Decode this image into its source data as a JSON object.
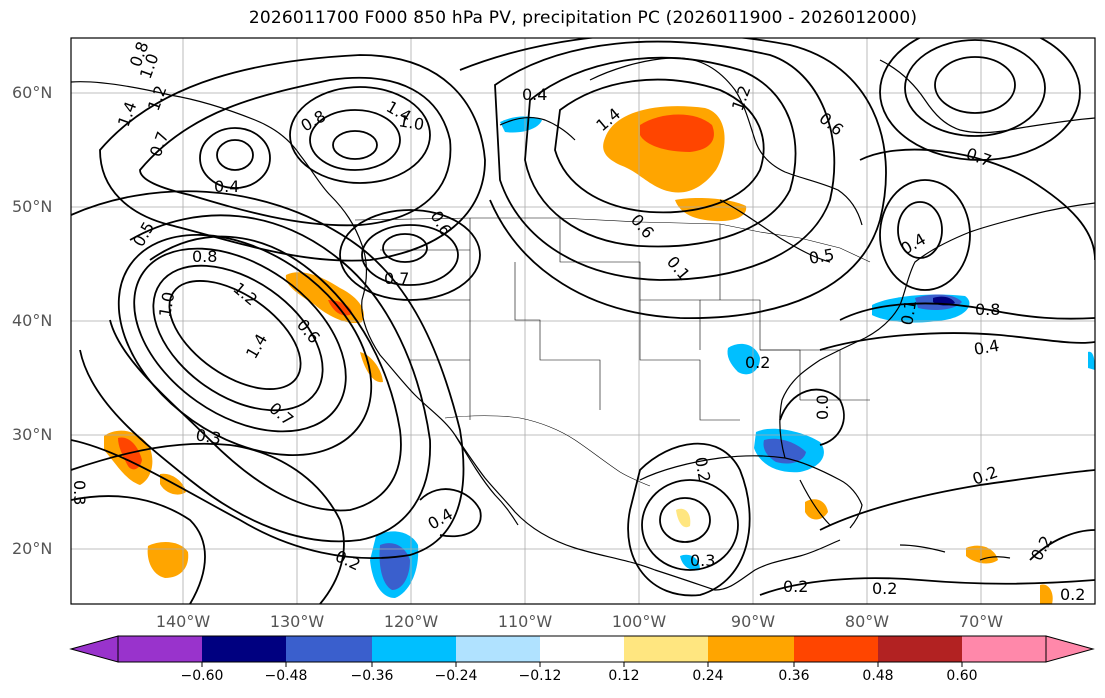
{
  "title": "2026011700 F000 850 hPa PV, precipitation PC (2026011900 - 2026012000)",
  "lat_labels": [
    "60°N",
    "50°N",
    "40°N",
    "30°N",
    "20°N"
  ],
  "lon_labels": [
    "140°W",
    "130°W",
    "120°W",
    "110°W",
    "100°W",
    "90°W",
    "80°W",
    "70°W"
  ],
  "colorbar": {
    "ticks": [
      "−0.60",
      "−0.48",
      "−0.36",
      "−0.24",
      "−0.12",
      "0.12",
      "0.24",
      "0.36",
      "0.48",
      "0.60"
    ],
    "colors": [
      "#9933cc",
      "#000080",
      "#3a5fcd",
      "#00bfff",
      "#b0e2ff",
      "#ffffff",
      "#ffe680",
      "#ffa500",
      "#ff4500",
      "#b22222",
      "#ff88aa"
    ]
  },
  "contour_labels": [
    "0.8",
    "1.0",
    "1.2",
    "1.4",
    "0.7",
    "0.8",
    "1.4",
    "1.0",
    "0.4",
    "1.4",
    "1.2",
    "0.6",
    "0.4",
    "0.5",
    "0.8",
    "1.2",
    "1.4",
    "1.0",
    "0.6",
    "0.7",
    "0.7",
    "0.6",
    "0.3",
    "0.3",
    "0.4",
    "0.2",
    "0.6",
    "0.1",
    "0.5",
    "0.4",
    "0.8",
    "0.4",
    "0.2",
    "0.2",
    "0.2",
    "0.2",
    "0.2",
    "0.3",
    "0.2",
    "0.2",
    "0.0",
    "0.1",
    "0.7"
  ]
}
